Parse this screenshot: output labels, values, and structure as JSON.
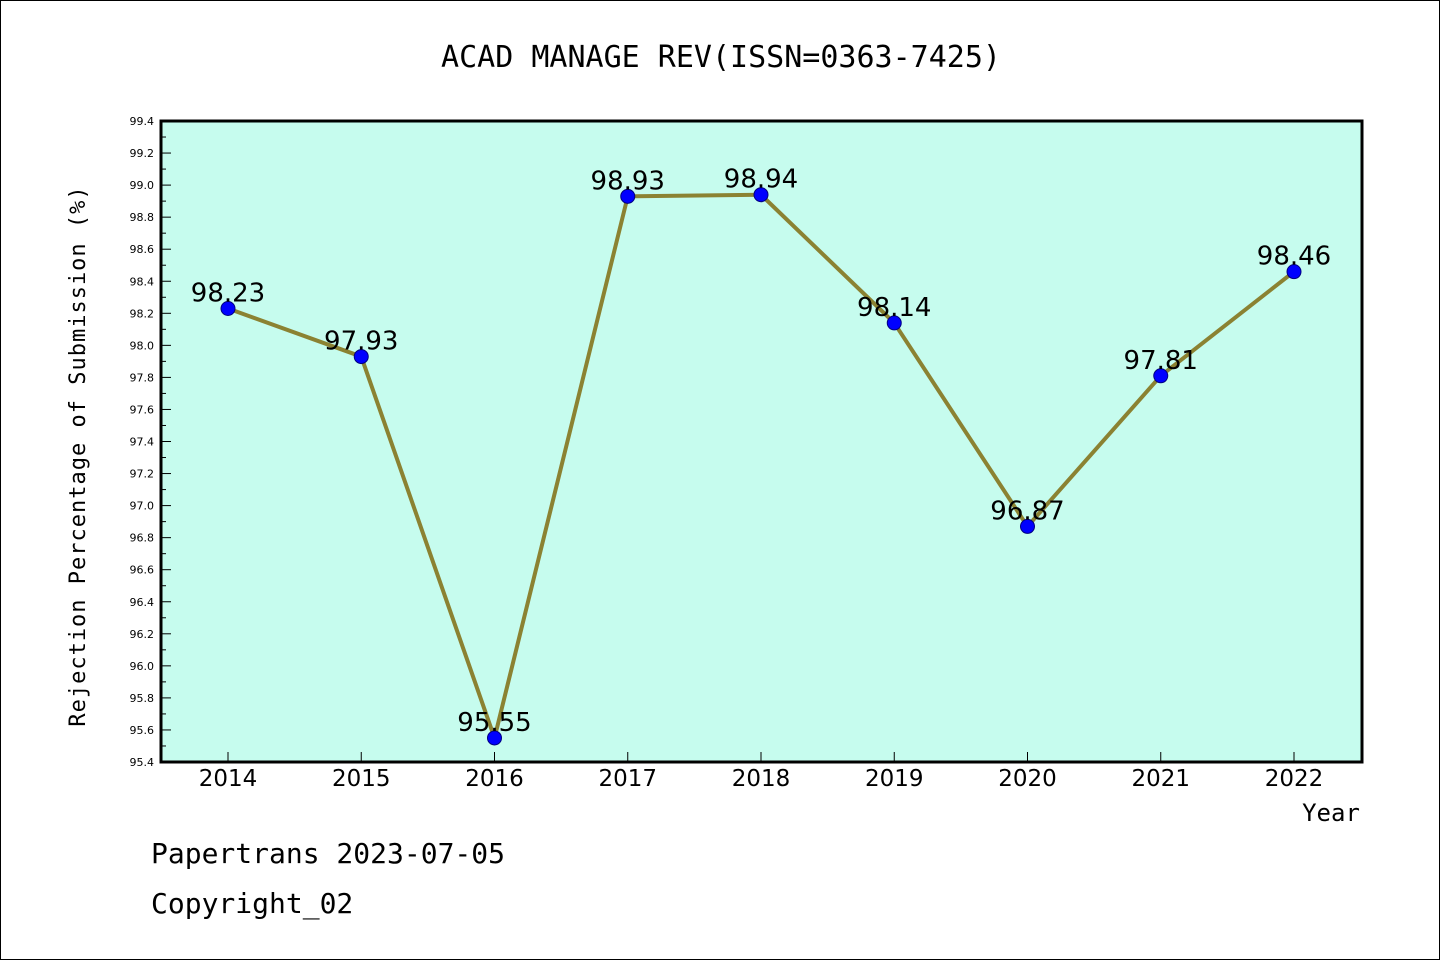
{
  "chart_data": {
    "type": "line",
    "title": "ACAD MANAGE REV(ISSN=0363-7425)",
    "xlabel": "Year",
    "ylabel": "Rejection Percentage of Submission (%)",
    "categories": [
      "2014",
      "2015",
      "2016",
      "2017",
      "2018",
      "2019",
      "2020",
      "2021",
      "2022"
    ],
    "series": [
      {
        "values": [
          98.23,
          97.93,
          95.55,
          98.93,
          98.94,
          98.14,
          96.87,
          97.81,
          98.46
        ],
        "labels": [
          "98.23",
          "97.93",
          "95.55",
          "98.93",
          "98.94",
          "98.14",
          "96.87",
          "97.81",
          "98.46"
        ]
      }
    ],
    "ylim": [
      95.4,
      99.4
    ],
    "yticks": [
      "95.4",
      "95.6",
      "95.8",
      "96.0",
      "96.2",
      "96.4",
      "96.6",
      "96.8",
      "97.0",
      "97.2",
      "97.4",
      "97.6",
      "97.8",
      "98.0",
      "98.2",
      "98.4",
      "98.6",
      "98.8",
      "99.0",
      "99.2",
      "99.4"
    ],
    "grid": false,
    "colors": {
      "plot_background": "#c6fcee",
      "line": "#8b8232",
      "marker_fill": "#0000ff",
      "marker_edge": "#000080"
    }
  },
  "footer": {
    "line1": "Papertrans 2023-07-05",
    "line2": "Copyright_02"
  }
}
